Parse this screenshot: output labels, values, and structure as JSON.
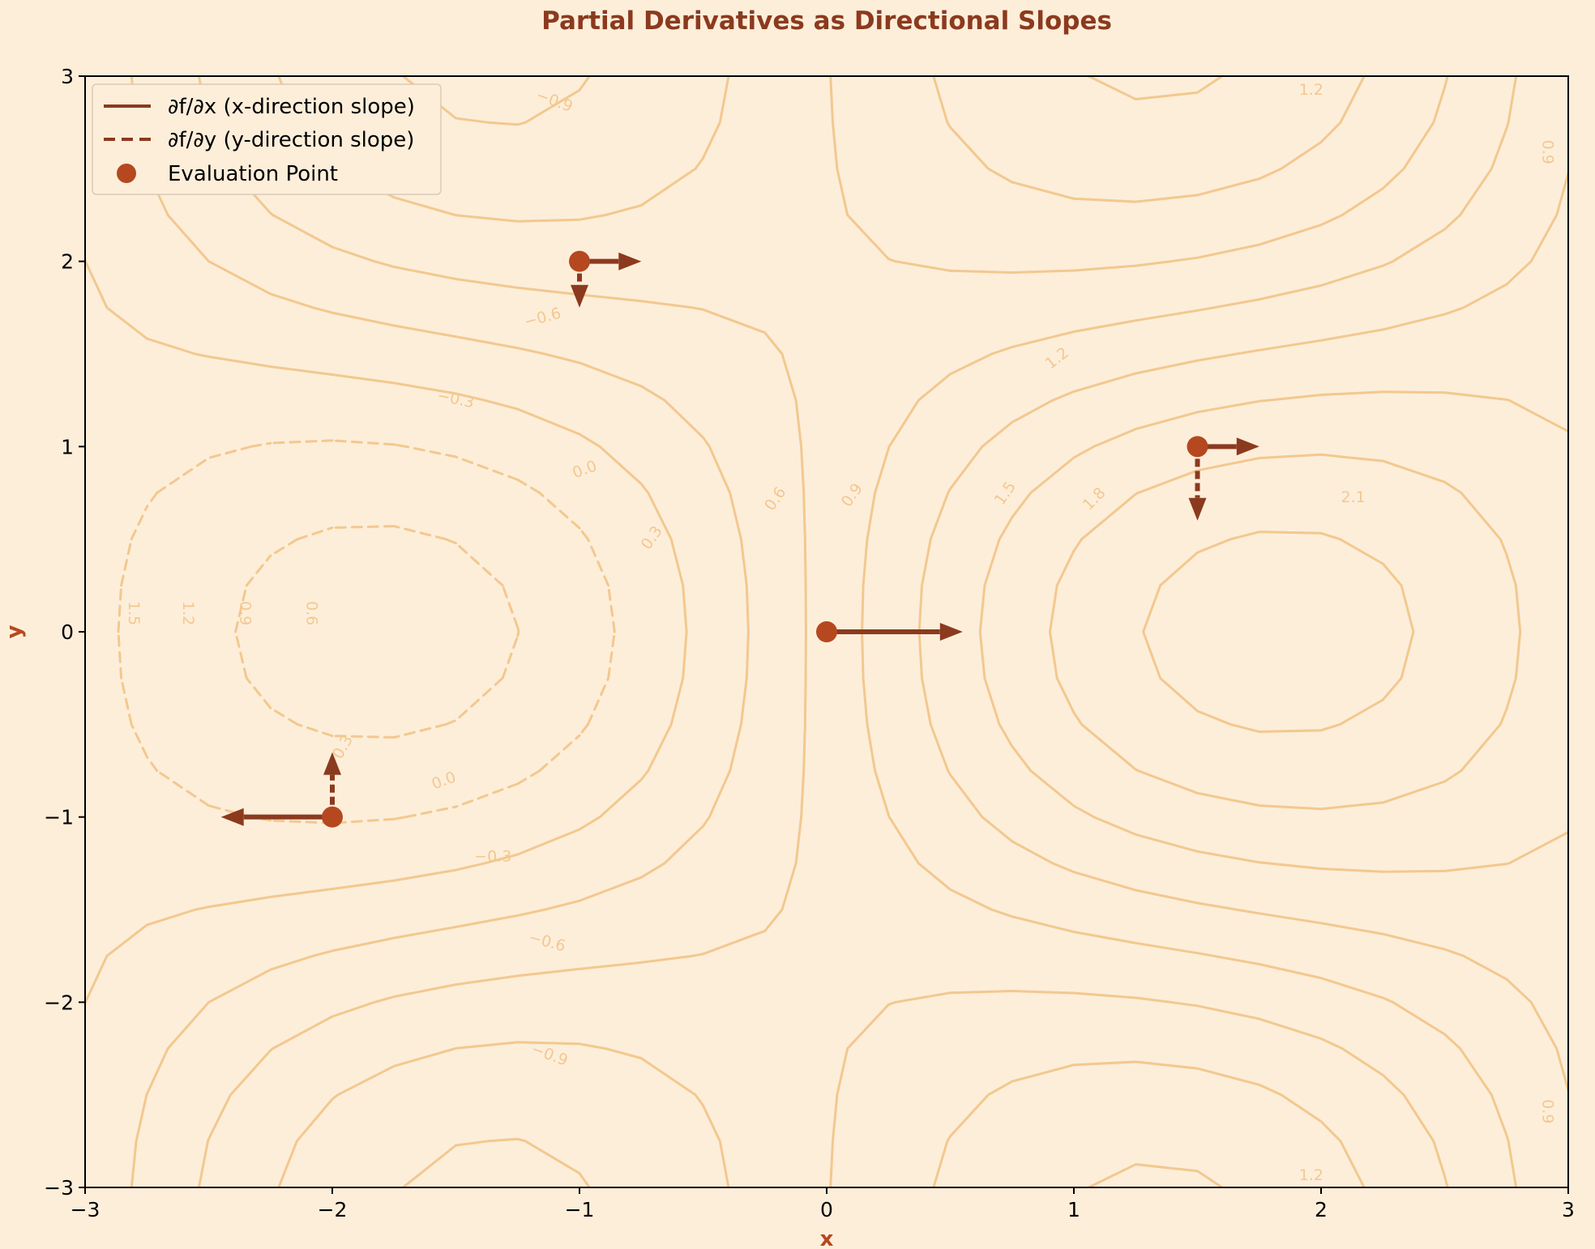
{
  "chart_data": {
    "type": "contour",
    "title": "Partial Derivatives as Directional Slopes",
    "xlabel": "x",
    "ylabel": "y",
    "xlim": [
      -3,
      3
    ],
    "ylim": [
      -3,
      3
    ],
    "xticks": [
      -3,
      -2,
      -1,
      0,
      1,
      2,
      3
    ],
    "yticks": [
      -3,
      -2,
      -1,
      0,
      1,
      2,
      3
    ],
    "xtick_labels": [
      "−3",
      "−2",
      "−1",
      "0",
      "1",
      "2",
      "3"
    ],
    "ytick_labels": [
      "−3",
      "−2",
      "−1",
      "0",
      "1",
      "2",
      "3"
    ],
    "grid": false,
    "legend_position": "top-left",
    "contour_levels": [
      -0.9,
      -0.6,
      -0.3,
      0.0,
      0.3,
      0.6,
      0.9,
      1.2,
      1.5,
      1.8,
      2.1
    ],
    "contour_labels": [
      {
        "text": "−0.9",
        "x": -1.1,
        "y": 2.87,
        "angle": 20
      },
      {
        "text": "−0.6",
        "x": -1.15,
        "y": 1.7,
        "angle": -15
      },
      {
        "text": "−0.3",
        "x": -1.5,
        "y": 1.26,
        "angle": 12
      },
      {
        "text": "0.0",
        "x": -0.98,
        "y": 0.88,
        "angle": -20
      },
      {
        "text": "0.3",
        "x": -0.71,
        "y": 0.51,
        "angle": -55
      },
      {
        "text": "0.6",
        "x": -0.21,
        "y": 0.72,
        "angle": -55
      },
      {
        "text": "0.9",
        "x": 0.1,
        "y": 0.74,
        "angle": -55
      },
      {
        "text": "1.2",
        "x": 0.93,
        "y": 1.48,
        "angle": -38
      },
      {
        "text": "1.5",
        "x": 0.72,
        "y": 0.75,
        "angle": -55
      },
      {
        "text": "1.8",
        "x": 1.08,
        "y": 0.72,
        "angle": -45
      },
      {
        "text": "2.1",
        "x": 2.13,
        "y": 0.73,
        "angle": 0
      },
      {
        "text": "1.2",
        "x": 1.96,
        "y": 2.93,
        "angle": 0
      },
      {
        "text": "0.9",
        "x": 2.92,
        "y": 2.59,
        "angle": 90
      },
      {
        "text": "1.5",
        "x": -2.8,
        "y": 0.1,
        "angle": 90
      },
      {
        "text": "1.2",
        "x": -2.58,
        "y": 0.1,
        "angle": 90
      },
      {
        "text": "0.9",
        "x": -2.35,
        "y": 0.1,
        "angle": 90
      },
      {
        "text": "0.6",
        "x": -2.08,
        "y": 0.1,
        "angle": 90
      },
      {
        "text": "0.3",
        "x": -1.96,
        "y": -0.62,
        "angle": -60
      },
      {
        "text": "0.0",
        "x": -1.55,
        "y": -0.8,
        "angle": -20
      },
      {
        "text": "−0.3",
        "x": -1.35,
        "y": -1.21,
        "angle": 0
      },
      {
        "text": "−0.6",
        "x": -1.13,
        "y": -1.67,
        "angle": 15
      },
      {
        "text": "−0.9",
        "x": -1.12,
        "y": -2.28,
        "angle": 20
      },
      {
        "text": "1.2",
        "x": 1.96,
        "y": -2.93,
        "angle": 0
      },
      {
        "text": "0.9",
        "x": 2.92,
        "y": -2.59,
        "angle": 90
      }
    ],
    "points": [
      {
        "x": -1,
        "y": 2,
        "dfdx": 0.25,
        "dfdy": -0.25
      },
      {
        "x": 1.5,
        "y": 1,
        "dfdx": 0.25,
        "dfdy": -0.4
      },
      {
        "x": 0,
        "y": 0,
        "dfdx": 0.55,
        "dfdy": 0.05
      },
      {
        "x": -2,
        "y": -1,
        "dfdx": -0.45,
        "dfdy": 0.35
      }
    ],
    "legend": {
      "dfdx_label": "∂f/∂x (x-direction slope)",
      "dfdy_label": "∂f/∂y (y-direction slope)",
      "point_label": "Evaluation Point"
    },
    "colors": {
      "background": "#fdeeda",
      "contour": "#f3c88f",
      "arrow": "#8b3a1e",
      "point": "#b5481f",
      "title": "#8b3a1e"
    }
  }
}
